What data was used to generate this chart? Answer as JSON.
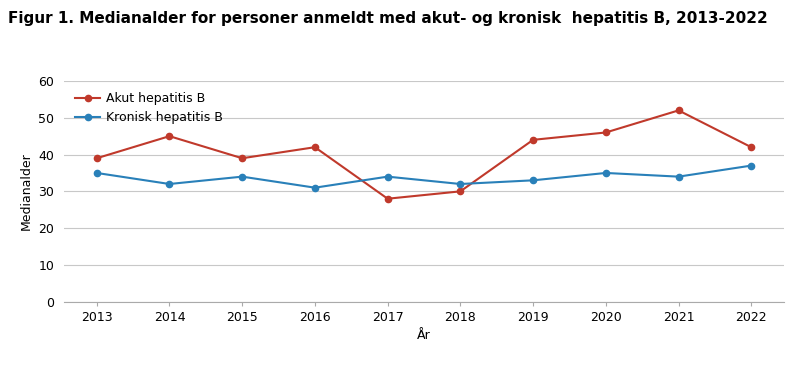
{
  "title_text": "Figur 1. Medianalder for personer anmeldt med akut- og kronisk  hepatitis B, 2013-2022",
  "years": [
    2013,
    2014,
    2015,
    2016,
    2017,
    2018,
    2019,
    2020,
    2021,
    2022
  ],
  "akut": [
    39,
    45,
    39,
    42,
    28,
    30,
    44,
    46,
    52,
    42
  ],
  "kronisk": [
    35,
    32,
    34,
    31,
    34,
    32,
    33,
    35,
    34,
    37
  ],
  "akut_label": "Akut hepatitis B",
  "kronisk_label": "Kronisk hepatitis B",
  "akut_color": "#c0392b",
  "kronisk_color": "#2980b9",
  "xlabel": "År",
  "ylabel": "Medianalder",
  "ylim": [
    0,
    60
  ],
  "yticks": [
    0,
    10,
    20,
    30,
    40,
    50,
    60
  ],
  "background_color": "#ffffff",
  "grid_color": "#c8c8c8",
  "title_fontsize": 11,
  "axis_fontsize": 9,
  "tick_fontsize": 9,
  "legend_fontsize": 9,
  "line_width": 1.5,
  "marker": "o",
  "marker_size": 4.5
}
